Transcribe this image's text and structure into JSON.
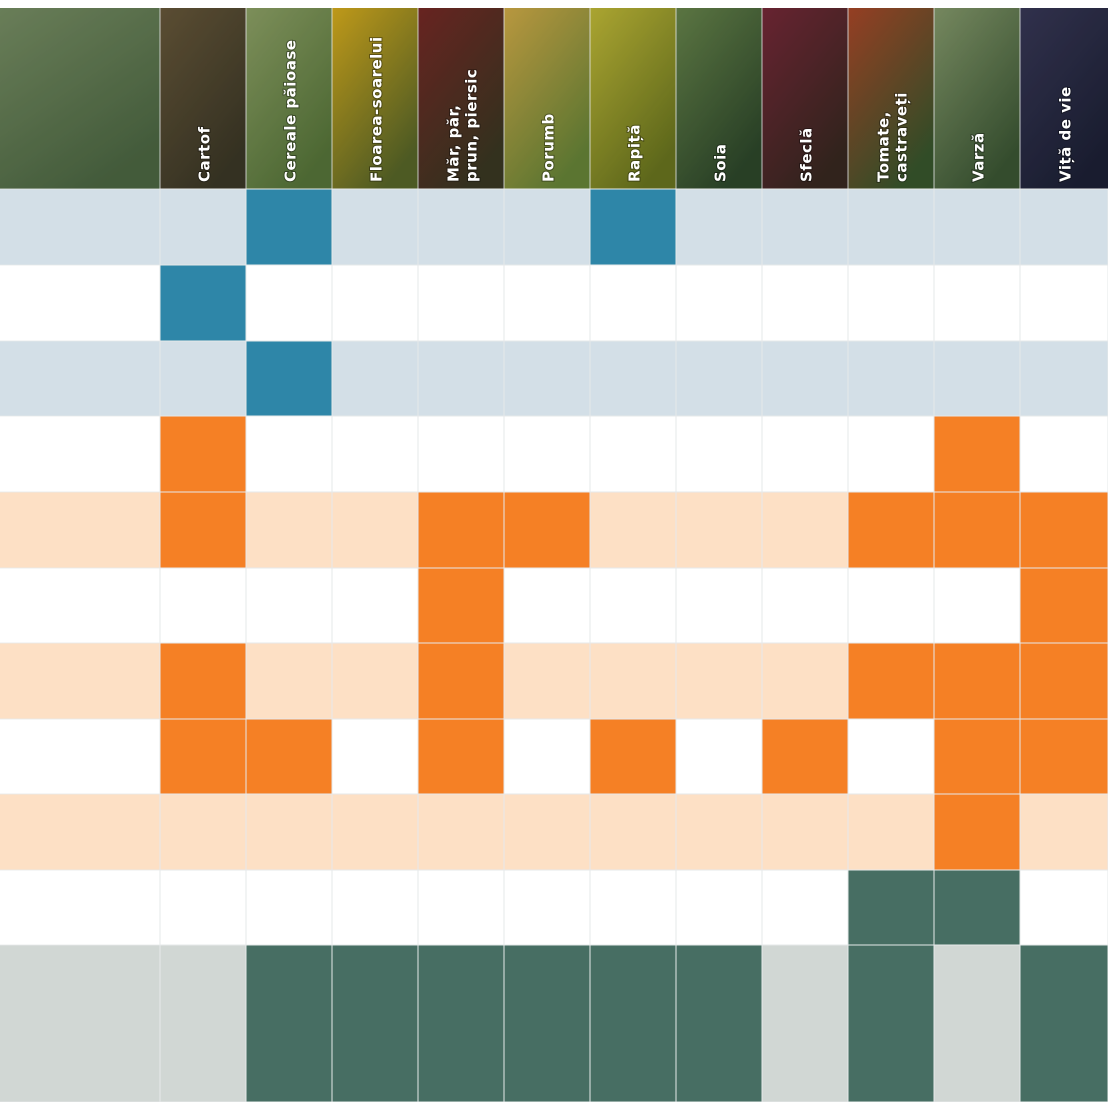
{
  "columns": [
    [
      "Cartof"
    ],
    [
      "Cereale păioase"
    ],
    [
      "Floarea-soarelui"
    ],
    [
      "Măr, păr,",
      "prun, piersic"
    ],
    [
      "Porumb"
    ],
    [
      "Rapiță"
    ],
    [
      "Soia"
    ],
    [
      "Sfeclă"
    ],
    [
      "Tomate,",
      "castraveți"
    ],
    [
      "Varză"
    ],
    [
      "Viță de vie"
    ]
  ],
  "rows": [
    {
      "band": "#d3dfe7",
      "color": "#2e86a8",
      "cells": [
        false,
        true,
        false,
        false,
        false,
        true,
        false,
        false,
        false,
        false,
        false
      ]
    },
    {
      "band": "#ffffff",
      "color": "#2e86a8",
      "cells": [
        true,
        false,
        false,
        false,
        false,
        false,
        false,
        false,
        false,
        false,
        false
      ]
    },
    {
      "band": "#d3dfe7",
      "color": "#2e86a8",
      "cells": [
        false,
        true,
        false,
        false,
        false,
        false,
        false,
        false,
        false,
        false,
        false
      ]
    },
    {
      "band": "#ffffff",
      "color": "#f58025",
      "cells": [
        true,
        false,
        false,
        false,
        false,
        false,
        false,
        false,
        false,
        true,
        false
      ]
    },
    {
      "band": "#fde0c5",
      "color": "#f58025",
      "cells": [
        true,
        false,
        false,
        true,
        true,
        false,
        false,
        false,
        true,
        true,
        true
      ]
    },
    {
      "band": "#ffffff",
      "color": "#f58025",
      "cells": [
        false,
        false,
        false,
        true,
        false,
        false,
        false,
        false,
        false,
        false,
        true
      ]
    },
    {
      "band": "#fde0c5",
      "color": "#f58025",
      "cells": [
        true,
        false,
        false,
        true,
        false,
        false,
        false,
        false,
        true,
        true,
        true
      ]
    },
    {
      "band": "#ffffff",
      "color": "#f58025",
      "cells": [
        true,
        true,
        false,
        true,
        false,
        true,
        false,
        true,
        false,
        true,
        true
      ]
    },
    {
      "band": "#fde0c5",
      "color": "#f58025",
      "cells": [
        false,
        false,
        false,
        false,
        false,
        false,
        false,
        false,
        false,
        true,
        false
      ]
    },
    {
      "band": "#ffffff",
      "color": "#476e63",
      "cells": [
        false,
        false,
        false,
        false,
        false,
        false,
        false,
        false,
        true,
        true,
        false
      ]
    },
    {
      "band": "#d1d7d4",
      "color": "#476e63",
      "cells": [
        false,
        true,
        true,
        true,
        true,
        true,
        true,
        false,
        true,
        false,
        true
      ]
    }
  ]
}
